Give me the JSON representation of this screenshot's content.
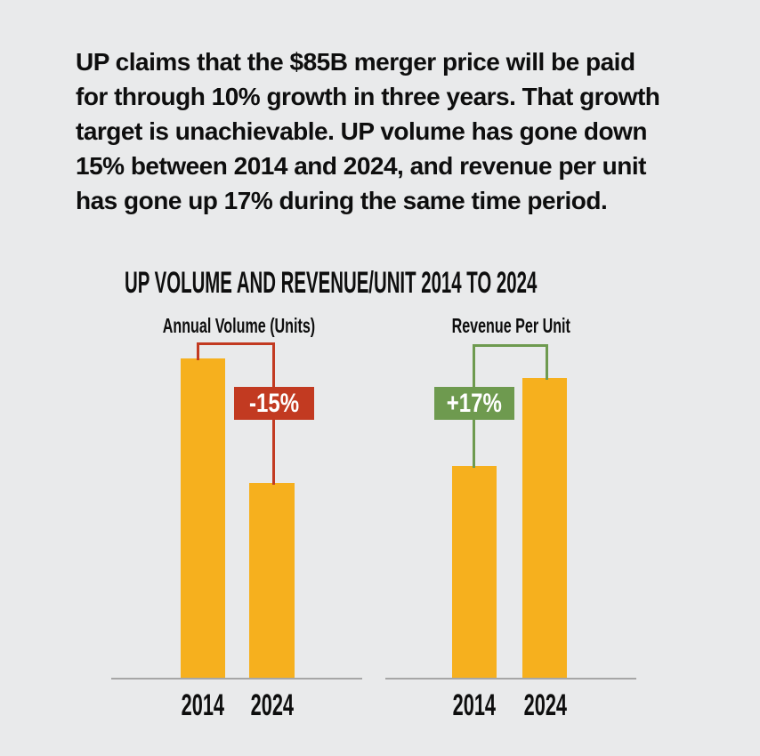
{
  "page": {
    "background_color": "#e9eaeb",
    "text_color": "#0e0e0e"
  },
  "intro": {
    "text": "UP claims that the $85B merger price will be paid\nfor through 10% growth in three years. That growth\ntarget is unachievable. UP volume has gone down\n15% between 2014 and 2024, and revenue per unit\nhas gone up 17% during the same time period."
  },
  "chart": {
    "title": "UP VOLUME AND REVENUE/UNIT 2014 TO 2024",
    "colors": {
      "bar": "#f6b01e",
      "decrease_accent": "#c23a21",
      "increase_accent": "#6e9a4f",
      "baseline": "#a6a6a6"
    }
  },
  "chart_data": [
    {
      "type": "bar",
      "title": "Annual Volume (Units)",
      "categories": [
        "2014",
        "2024"
      ],
      "values": [
        100,
        61
      ],
      "values_note": "relative bar heights as drawn (2014 normalized to 100); annotated change between bars is -15%",
      "change_label": "-15%",
      "change_direction": "decrease",
      "bar_color": "#f6b01e",
      "annotation_color": "#c23a21",
      "ylabel": "",
      "xlabel": "",
      "grid": false,
      "legend": "none",
      "value_axis": "none"
    },
    {
      "type": "bar",
      "title": "Revenue Per Unit",
      "categories": [
        "2014",
        "2024"
      ],
      "values": [
        71,
        100
      ],
      "values_note": "relative bar heights as drawn (2024 normalized to 100); annotated change between bars is +17%",
      "change_label": "+17%",
      "change_direction": "increase",
      "bar_color": "#f6b01e",
      "annotation_color": "#6e9a4f",
      "ylabel": "",
      "xlabel": "",
      "grid": false,
      "legend": "none",
      "value_axis": "none"
    }
  ]
}
